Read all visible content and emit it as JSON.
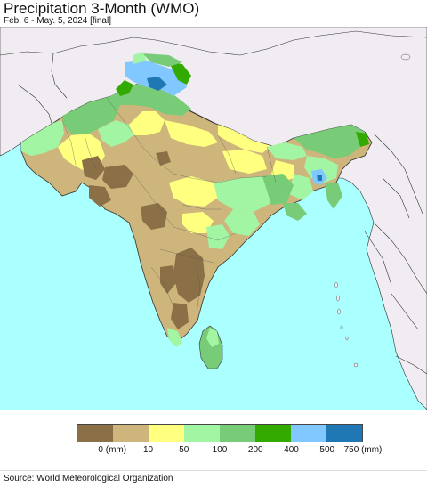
{
  "header": {
    "title": "Precipitation 3-Month (WMO)",
    "subtitle": "Feb. 6 - May. 5, 2024 [final]"
  },
  "map": {
    "ocean_color": "#aaffff",
    "land_outside_color": "#f0ecf2",
    "border_color": "#333333"
  },
  "legend": {
    "colors": [
      "#8b6f47",
      "#cdb57c",
      "#ffff80",
      "#a2f5a2",
      "#78cc78",
      "#33aa00",
      "#80c8ff",
      "#1f78b4"
    ],
    "labels": [
      "0 (mm)",
      "10",
      "50",
      "100",
      "200",
      "400",
      "500",
      "750 (mm)"
    ]
  },
  "footer": {
    "source": "Source: World Meteorological Organization"
  }
}
